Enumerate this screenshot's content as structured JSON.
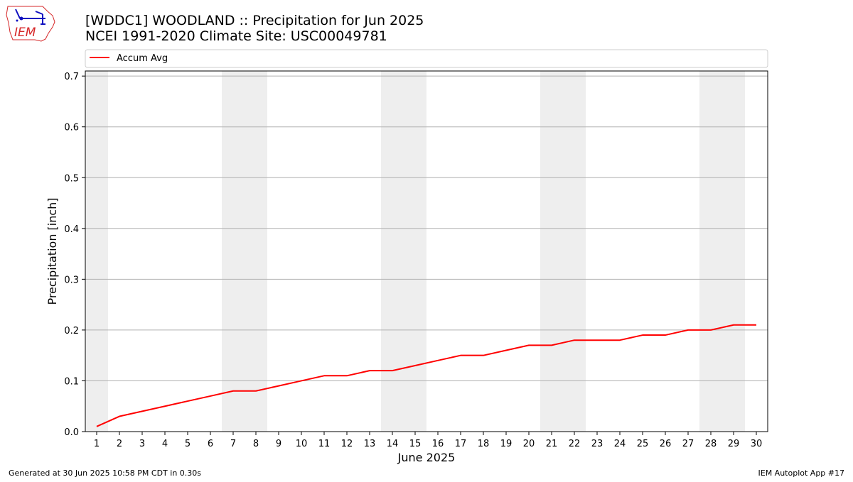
{
  "logo": {
    "text": "IEM",
    "outline_color": "#d62728",
    "symbol_color": "#1010c0"
  },
  "header": {
    "title_line1": "[WDDC1] WOODLAND :: Precipitation for Jun 2025",
    "title_line2": "NCEI 1991-2020 Climate Site: USC00049781"
  },
  "footer": {
    "generated": "Generated at 30 Jun 2025 10:58 PM CDT in 0.30s",
    "app": "IEM Autoplot App #17"
  },
  "chart_data": {
    "type": "line",
    "title": "[WDDC1] WOODLAND :: Precipitation for Jun 2025",
    "subtitle": "NCEI 1991-2020 Climate Site: USC00049781",
    "xlabel": "June 2025",
    "ylabel": "Precipitation [inch]",
    "x": [
      1,
      2,
      3,
      4,
      5,
      6,
      7,
      8,
      9,
      10,
      11,
      12,
      13,
      14,
      15,
      16,
      17,
      18,
      19,
      20,
      21,
      22,
      23,
      24,
      25,
      26,
      27,
      28,
      29,
      30
    ],
    "x_tick_labels": [
      "1",
      "2",
      "3",
      "4",
      "5",
      "6",
      "7",
      "8",
      "9",
      "10",
      "11",
      "12",
      "13",
      "14",
      "15",
      "16",
      "17",
      "18",
      "19",
      "20",
      "21",
      "22",
      "23",
      "24",
      "25",
      "26",
      "27",
      "28",
      "29",
      "30"
    ],
    "xlim": [
      0.5,
      30.5
    ],
    "ylim": [
      0,
      0.71
    ],
    "y_ticks": [
      0.0,
      0.1,
      0.2,
      0.3,
      0.4,
      0.5,
      0.6,
      0.7
    ],
    "y_tick_labels": [
      "0.0",
      "0.1",
      "0.2",
      "0.3",
      "0.4",
      "0.5",
      "0.6",
      "0.7"
    ],
    "grid": "horizontal",
    "legend_position": "top, above plot",
    "weekend_shading": [
      [
        0.5,
        1.5
      ],
      [
        6.5,
        8.5
      ],
      [
        13.5,
        15.5
      ],
      [
        20.5,
        22.5
      ],
      [
        27.5,
        29.5
      ]
    ],
    "weekend_shading_color": "#eeeeee",
    "series": [
      {
        "name": "Accum Avg",
        "color": "#ff0000",
        "values": [
          0.01,
          0.03,
          0.04,
          0.05,
          0.06,
          0.07,
          0.08,
          0.08,
          0.09,
          0.1,
          0.11,
          0.11,
          0.12,
          0.12,
          0.13,
          0.14,
          0.15,
          0.15,
          0.16,
          0.17,
          0.17,
          0.18,
          0.18,
          0.18,
          0.19,
          0.19,
          0.2,
          0.2,
          0.21,
          0.21
        ]
      }
    ]
  }
}
